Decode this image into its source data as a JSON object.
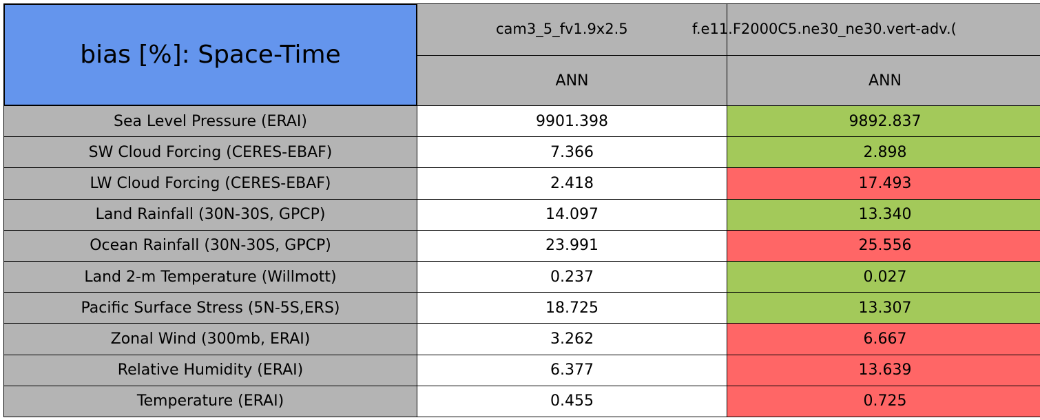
{
  "title": "bias [%]: Space-Time",
  "table": {
    "columns": [
      {
        "name": "cam3_5_fv1.9x2.5",
        "season": "ANN"
      },
      {
        "name": "f.e11.F2000C5.ne30_ne30.vert-adv.(",
        "season": "ANN"
      }
    ],
    "rows": [
      {
        "label": "Sea Level Pressure (ERAI)",
        "cells": [
          {
            "text": "9901.398",
            "color": "#ffffff"
          },
          {
            "text": "9892.837",
            "color": "#a3c95a"
          }
        ]
      },
      {
        "label": "SW Cloud Forcing (CERES-EBAF)",
        "cells": [
          {
            "text": "7.366",
            "color": "#ffffff"
          },
          {
            "text": "2.898",
            "color": "#a3c95a"
          }
        ]
      },
      {
        "label": "LW Cloud Forcing (CERES-EBAF)",
        "cells": [
          {
            "text": "2.418",
            "color": "#ffffff"
          },
          {
            "text": "17.493",
            "color": "#ff6666"
          }
        ]
      },
      {
        "label": "Land Rainfall (30N-30S, GPCP)",
        "cells": [
          {
            "text": "14.097",
            "color": "#ffffff"
          },
          {
            "text": "13.340",
            "color": "#a3c95a"
          }
        ]
      },
      {
        "label": "Ocean Rainfall (30N-30S, GPCP)",
        "cells": [
          {
            "text": "23.991",
            "color": "#ffffff"
          },
          {
            "text": "25.556",
            "color": "#ff6666"
          }
        ]
      },
      {
        "label": "Land 2-m Temperature (Willmott)",
        "cells": [
          {
            "text": "0.237",
            "color": "#ffffff"
          },
          {
            "text": "0.027",
            "color": "#a3c95a"
          }
        ]
      },
      {
        "label": "Pacific Surface Stress (5N-5S,ERS)",
        "cells": [
          {
            "text": "18.725",
            "color": "#ffffff"
          },
          {
            "text": "13.307",
            "color": "#a3c95a"
          }
        ]
      },
      {
        "label": "Zonal Wind (300mb, ERAI)",
        "cells": [
          {
            "text": "3.262",
            "color": "#ffffff"
          },
          {
            "text": "6.667",
            "color": "#ff6666"
          }
        ]
      },
      {
        "label": "Relative Humidity (ERAI)",
        "cells": [
          {
            "text": "6.377",
            "color": "#ffffff"
          },
          {
            "text": "13.639",
            "color": "#ff6666"
          }
        ]
      },
      {
        "label": "Temperature (ERAI)",
        "cells": [
          {
            "text": "0.455",
            "color": "#ffffff"
          },
          {
            "text": "0.725",
            "color": "#ff6666"
          }
        ]
      }
    ]
  }
}
